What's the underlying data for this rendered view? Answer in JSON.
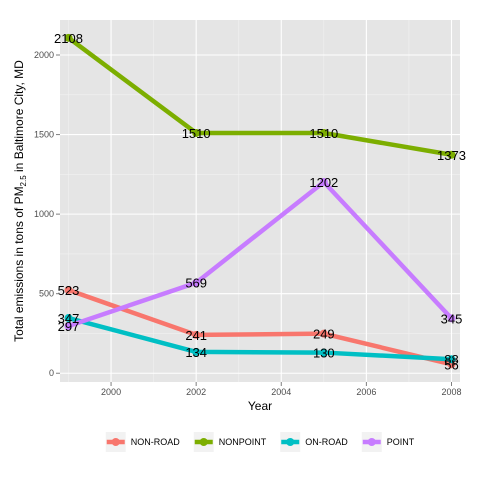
{
  "chart_data": {
    "type": "line",
    "title": "",
    "xlabel": "Year",
    "ylabel": {
      "prefix": "Total emissions in tons of PM",
      "subscript": "2.5",
      "suffix": " in Baltimore City, MD"
    },
    "x": [
      1999,
      2002,
      2005,
      2008
    ],
    "xlim": [
      1998.8,
      2008.2
    ],
    "ylim": [
      -55,
      2220
    ],
    "x_ticks": [
      2000,
      2002,
      2004,
      2006,
      2008
    ],
    "y_ticks": [
      0,
      500,
      1000,
      1500,
      2000
    ],
    "grid": true,
    "legend_position": "bottom",
    "series": [
      {
        "name": "NON-ROAD",
        "color": "#F8766D",
        "values": [
          523,
          241,
          249,
          56
        ],
        "labels": [
          "523",
          "241",
          "249",
          "56"
        ]
      },
      {
        "name": "NONPOINT",
        "color": "#7CAE00",
        "values": [
          2108,
          1510,
          1510,
          1373
        ],
        "labels": [
          "2108",
          "1510",
          "1510",
          "1373"
        ]
      },
      {
        "name": "ON-ROAD",
        "color": "#00BFC4",
        "values": [
          347,
          134,
          130,
          88
        ],
        "labels": [
          "347",
          "134",
          "130",
          "88"
        ]
      },
      {
        "name": "POINT",
        "color": "#C77CFF",
        "values": [
          297,
          569,
          1202,
          345
        ],
        "labels": [
          "297",
          "569",
          "1202",
          "345"
        ]
      }
    ]
  }
}
